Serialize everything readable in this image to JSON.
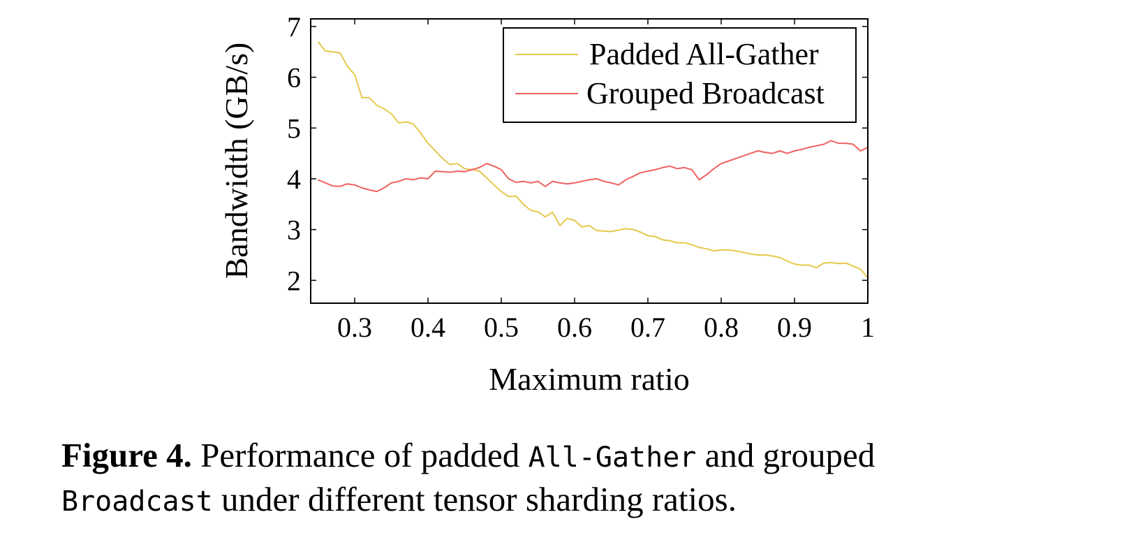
{
  "chart_data": {
    "type": "line",
    "xlabel": "Maximum ratio",
    "ylabel": "Bandwidth (GB/s)",
    "xlim": [
      0.24,
      1.0
    ],
    "ylim": [
      1.55,
      7.15
    ],
    "xticks": [
      "0.3",
      "0.4",
      "0.5",
      "0.6",
      "0.7",
      "0.8",
      "0.9",
      "1"
    ],
    "yticks": [
      "2",
      "3",
      "4",
      "5",
      "6",
      "7"
    ],
    "legend_position": "top-right",
    "grid": false,
    "series": [
      {
        "name": "Padded All-Gather",
        "color": "#e6c84c",
        "x": [
          0.25,
          0.26,
          0.27,
          0.28,
          0.29,
          0.3,
          0.31,
          0.32,
          0.33,
          0.34,
          0.35,
          0.36,
          0.37,
          0.38,
          0.39,
          0.4,
          0.41,
          0.42,
          0.43,
          0.44,
          0.45,
          0.46,
          0.47,
          0.48,
          0.49,
          0.5,
          0.51,
          0.52,
          0.53,
          0.54,
          0.55,
          0.56,
          0.57,
          0.58,
          0.59,
          0.6,
          0.61,
          0.62,
          0.63,
          0.64,
          0.65,
          0.66,
          0.67,
          0.68,
          0.69,
          0.7,
          0.71,
          0.72,
          0.73,
          0.74,
          0.75,
          0.76,
          0.77,
          0.78,
          0.79,
          0.8,
          0.81,
          0.82,
          0.83,
          0.84,
          0.85,
          0.86,
          0.87,
          0.88,
          0.89,
          0.9,
          0.91,
          0.92,
          0.93,
          0.94,
          0.95,
          0.96,
          0.97,
          0.98,
          0.99,
          1.0
        ],
        "y": [
          6.7,
          6.52,
          6.5,
          6.48,
          6.22,
          6.05,
          5.6,
          5.6,
          5.45,
          5.38,
          5.28,
          5.1,
          5.12,
          5.08,
          4.9,
          4.7,
          4.55,
          4.4,
          4.28,
          4.3,
          4.2,
          4.18,
          4.15,
          4.02,
          3.88,
          3.75,
          3.65,
          3.66,
          3.5,
          3.38,
          3.35,
          3.25,
          3.34,
          3.08,
          3.22,
          3.18,
          3.05,
          3.08,
          2.98,
          2.97,
          2.96,
          2.99,
          3.02,
          3.0,
          2.95,
          2.88,
          2.86,
          2.8,
          2.78,
          2.74,
          2.74,
          2.7,
          2.65,
          2.62,
          2.58,
          2.6,
          2.6,
          2.58,
          2.55,
          2.52,
          2.5,
          2.5,
          2.48,
          2.45,
          2.38,
          2.32,
          2.3,
          2.3,
          2.25,
          2.34,
          2.35,
          2.33,
          2.34,
          2.28,
          2.22,
          2.05
        ]
      },
      {
        "name": "Grouped Broadcast",
        "color": "#f06060",
        "x": [
          0.25,
          0.26,
          0.27,
          0.28,
          0.29,
          0.3,
          0.31,
          0.32,
          0.33,
          0.34,
          0.35,
          0.36,
          0.37,
          0.38,
          0.39,
          0.4,
          0.41,
          0.42,
          0.43,
          0.44,
          0.45,
          0.46,
          0.47,
          0.48,
          0.49,
          0.5,
          0.51,
          0.52,
          0.53,
          0.54,
          0.55,
          0.56,
          0.57,
          0.58,
          0.59,
          0.6,
          0.61,
          0.62,
          0.63,
          0.64,
          0.65,
          0.66,
          0.67,
          0.68,
          0.69,
          0.7,
          0.71,
          0.72,
          0.73,
          0.74,
          0.75,
          0.76,
          0.77,
          0.78,
          0.79,
          0.8,
          0.81,
          0.82,
          0.83,
          0.84,
          0.85,
          0.86,
          0.87,
          0.88,
          0.89,
          0.9,
          0.91,
          0.92,
          0.93,
          0.94,
          0.95,
          0.96,
          0.97,
          0.98,
          0.99,
          1.0
        ],
        "y": [
          3.98,
          3.92,
          3.86,
          3.85,
          3.9,
          3.88,
          3.82,
          3.78,
          3.75,
          3.82,
          3.92,
          3.95,
          4.0,
          3.98,
          4.02,
          4.0,
          4.15,
          4.14,
          4.13,
          4.15,
          4.14,
          4.18,
          4.22,
          4.3,
          4.25,
          4.18,
          4.0,
          3.93,
          3.95,
          3.92,
          3.95,
          3.85,
          3.95,
          3.92,
          3.9,
          3.92,
          3.95,
          3.98,
          4.0,
          3.95,
          3.92,
          3.88,
          3.98,
          4.05,
          4.12,
          4.15,
          4.18,
          4.22,
          4.25,
          4.2,
          4.22,
          4.18,
          3.98,
          4.08,
          4.2,
          4.3,
          4.35,
          4.4,
          4.45,
          4.5,
          4.55,
          4.52,
          4.5,
          4.55,
          4.5,
          4.55,
          4.58,
          4.62,
          4.65,
          4.68,
          4.75,
          4.7,
          4.7,
          4.68,
          4.55,
          4.62
        ]
      }
    ]
  },
  "caption": {
    "label": "Figure 4.",
    "text_1": " Performance of padded ",
    "code_1": "All-Gather",
    "text_2": " and grouped",
    "code_2": "Broadcast",
    "text_3": " under different tensor sharding ratios."
  }
}
